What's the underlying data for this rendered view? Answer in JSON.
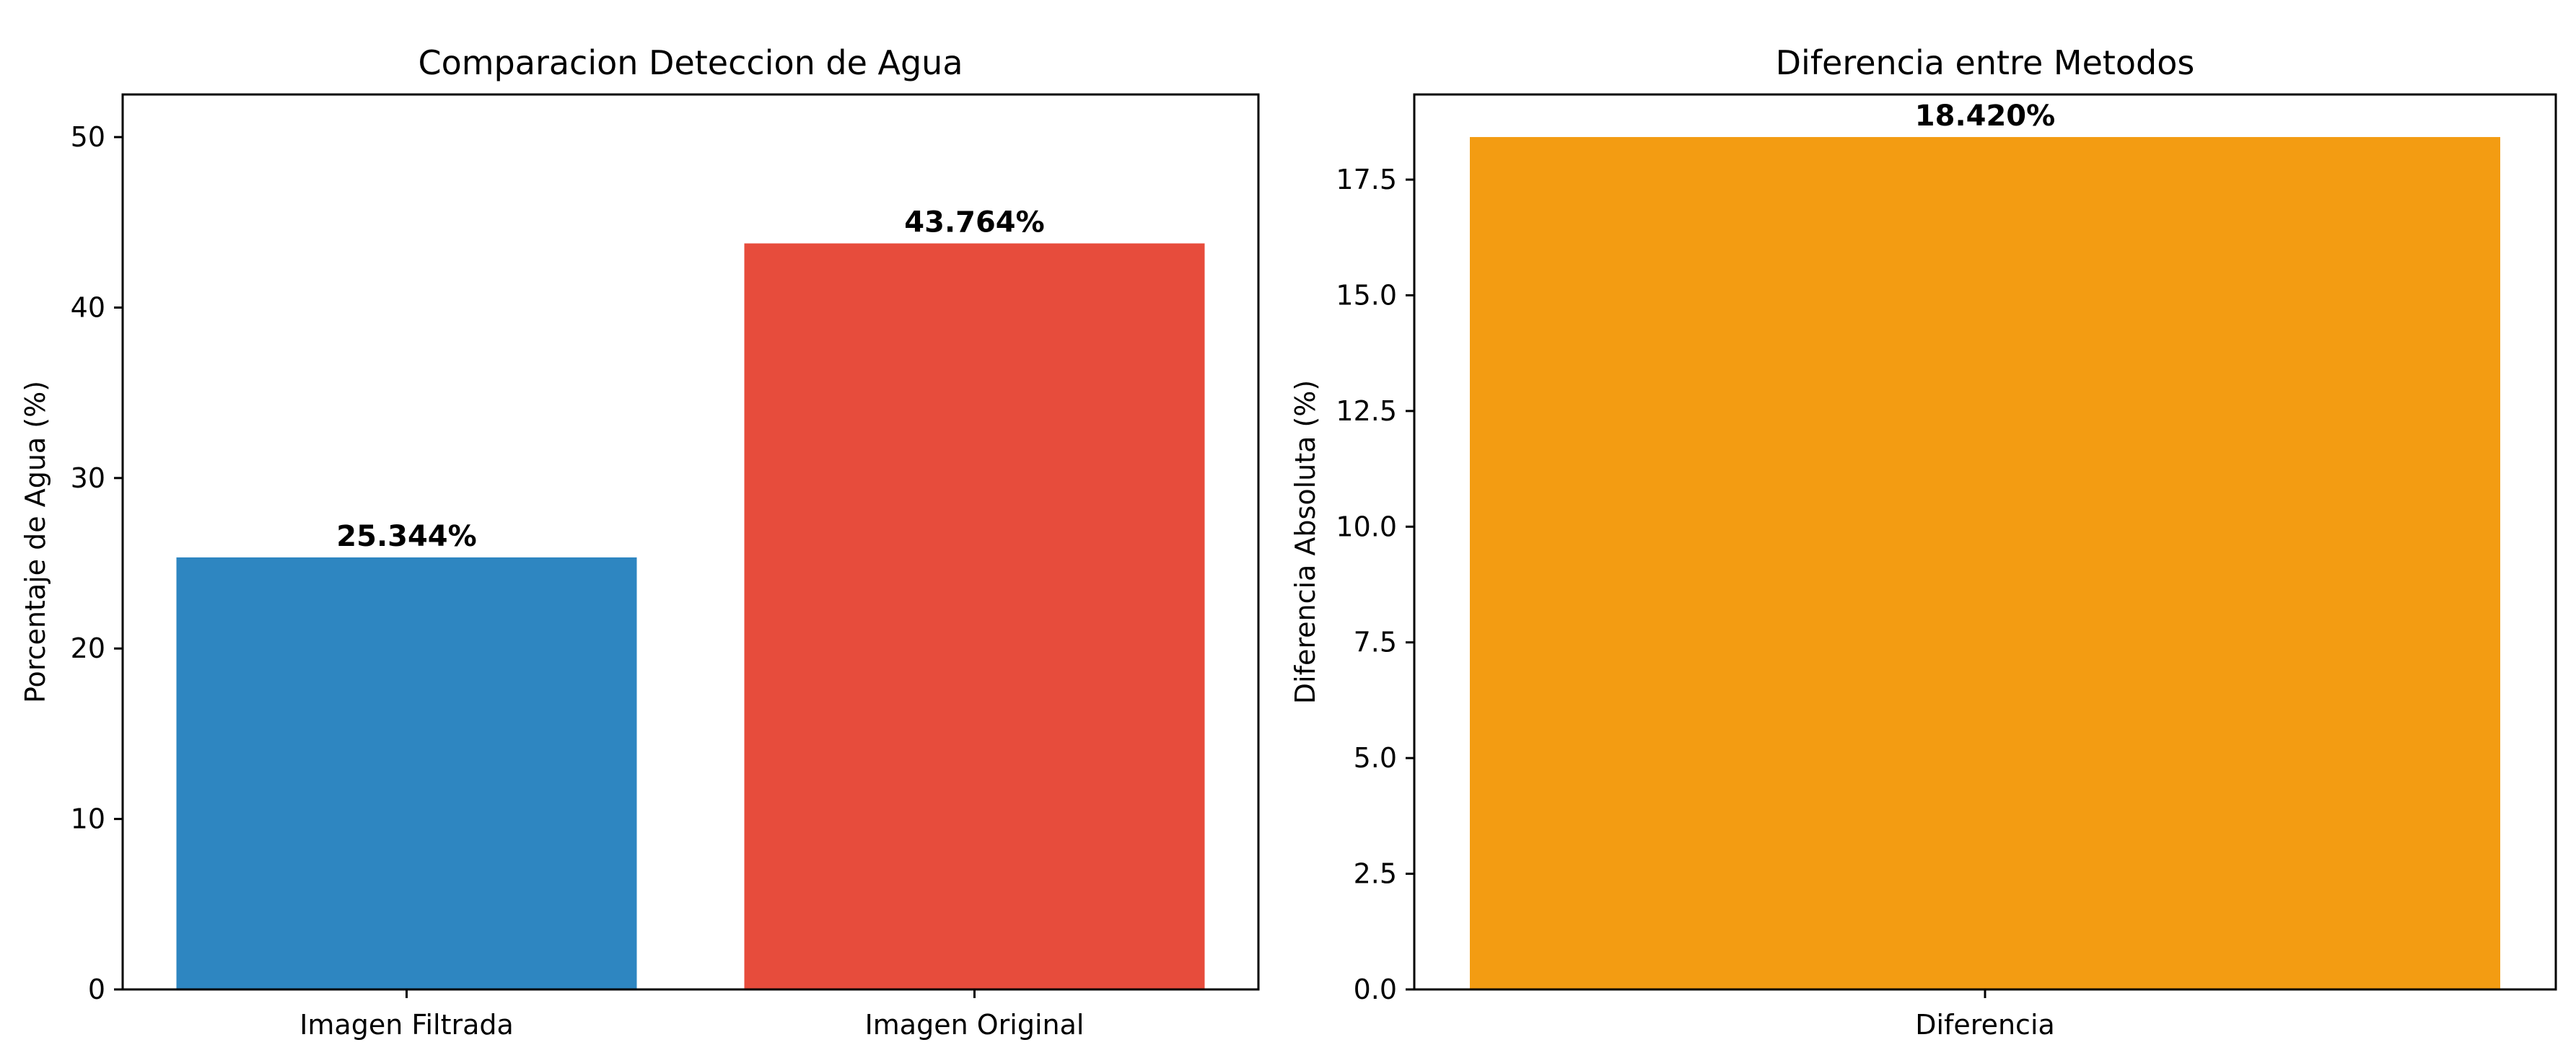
{
  "chart_data": [
    {
      "type": "bar",
      "title": "Comparacion Deteccion de Agua",
      "xlabel": "",
      "ylabel": "Porcentaje de Agua (%)",
      "categories": [
        "Imagen Filtrada",
        "Imagen Original"
      ],
      "values": [
        25.344,
        43.764
      ],
      "data_labels": [
        "25.344%",
        "43.764%"
      ],
      "colors": [
        "#2e86c1",
        "#e74c3c"
      ],
      "ylim": [
        0,
        52.5
      ],
      "yticks": [
        0,
        10,
        20,
        30,
        40,
        50
      ],
      "ytick_labels": [
        "0",
        "10",
        "20",
        "30",
        "40",
        "50"
      ],
      "grid": false,
      "legend": "none"
    },
    {
      "type": "bar",
      "title": "Diferencia entre Metodos",
      "xlabel": "",
      "ylabel": "Diferencia Absoluta (%)",
      "categories": [
        "Diferencia"
      ],
      "values": [
        18.42
      ],
      "data_labels": [
        "18.420%"
      ],
      "colors": [
        "#f39c12"
      ],
      "ylim": [
        0,
        19.34
      ],
      "yticks": [
        0,
        2.5,
        5,
        7.5,
        10,
        12.5,
        15,
        17.5
      ],
      "ytick_labels": [
        "0.0",
        "2.5",
        "5.0",
        "7.5",
        "10.0",
        "12.5",
        "15.0",
        "17.5"
      ],
      "grid": false,
      "legend": "none"
    }
  ]
}
